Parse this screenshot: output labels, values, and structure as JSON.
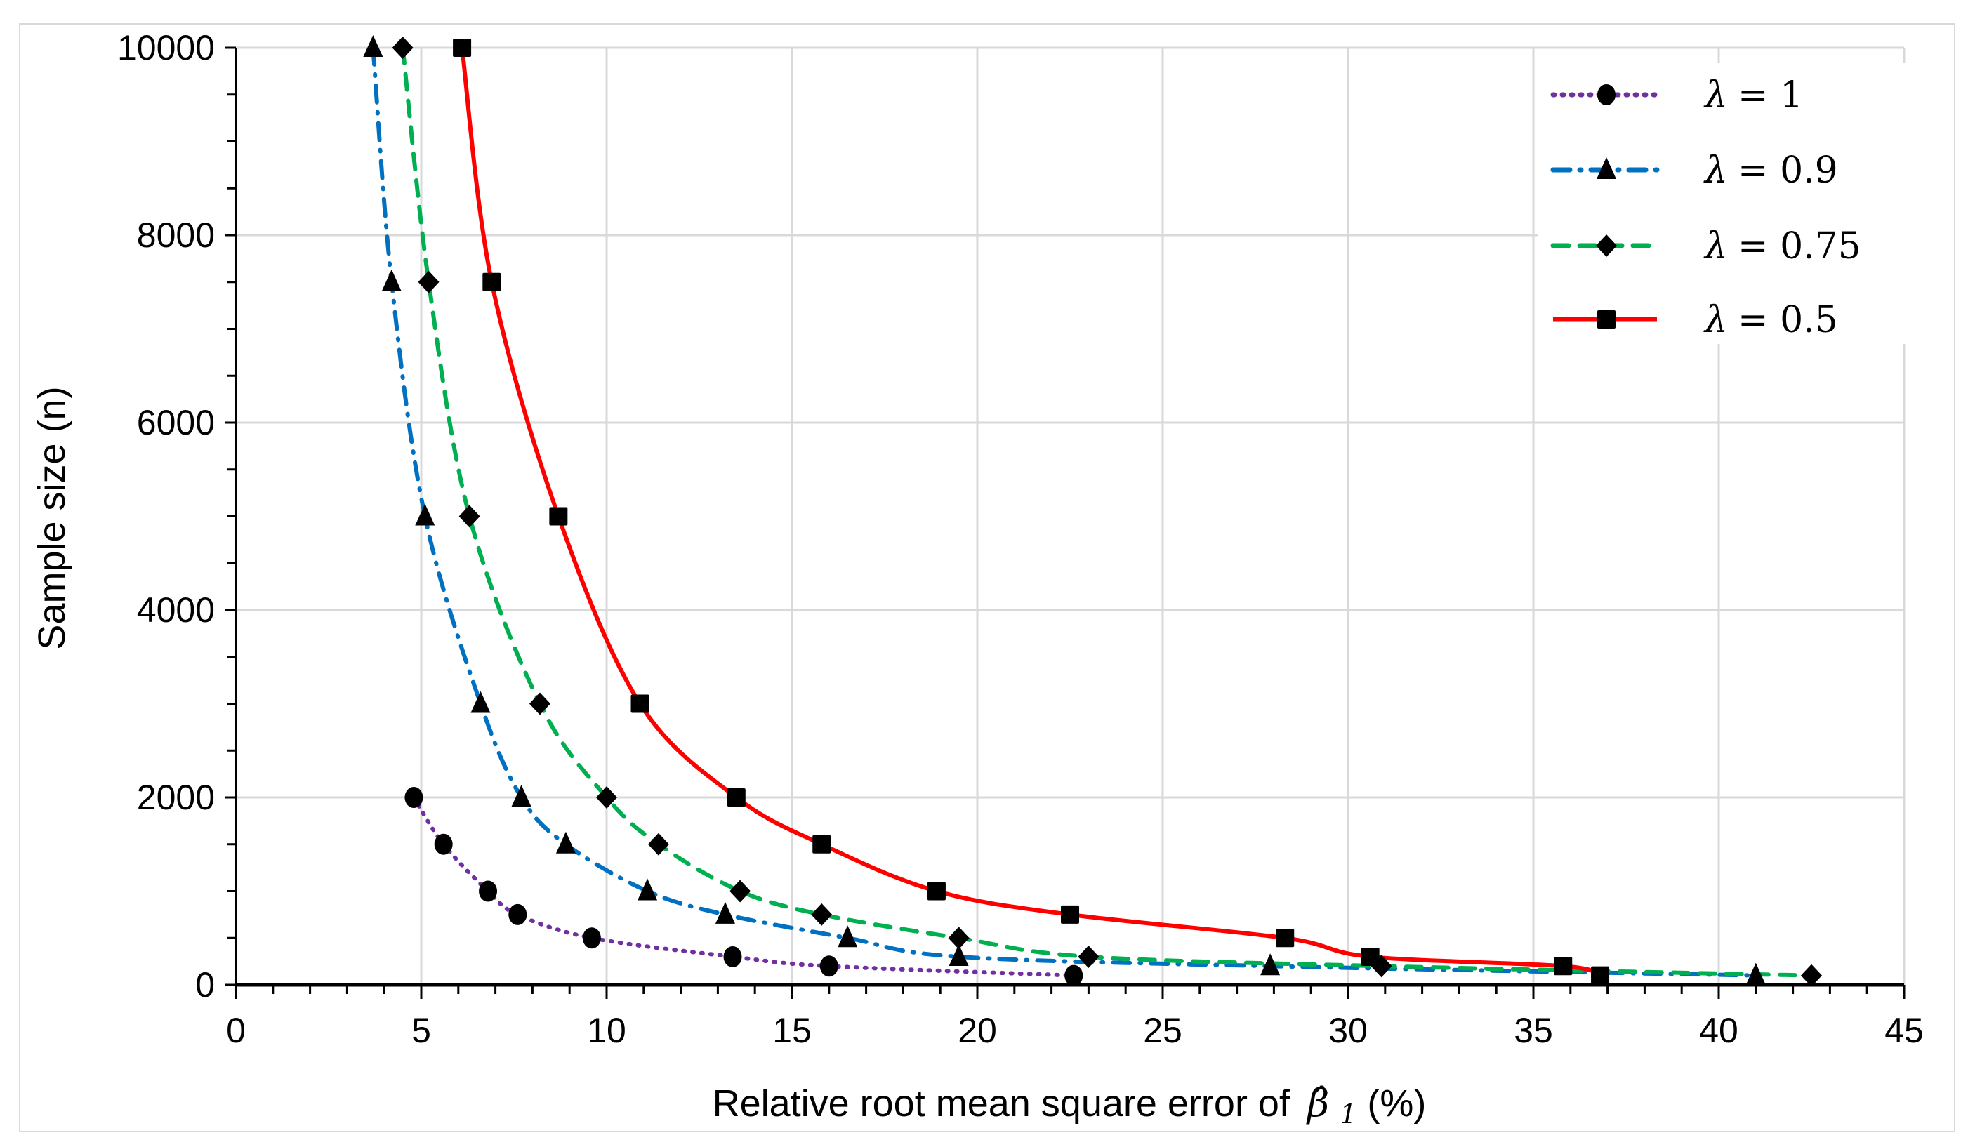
{
  "chart_data": {
    "type": "line",
    "title": "",
    "xlabel": "Relative root mean square error of β̂1 (%)",
    "xlabel_parts": {
      "prefix": "Relative root mean square error of ",
      "symbol": "β̂",
      "subscript": "1",
      "suffix": "(%)"
    },
    "ylabel": "Sample size (n)",
    "xlim": [
      0,
      45
    ],
    "ylim": [
      0,
      10000
    ],
    "x_ticks": [
      0,
      5,
      10,
      15,
      20,
      25,
      30,
      35,
      40,
      45
    ],
    "x_minor_step": 1,
    "y_ticks": [
      0,
      2000,
      4000,
      6000,
      8000,
      10000
    ],
    "y_minor_step": 500,
    "grid": {
      "vertical": true,
      "horizontal": true,
      "color": "#d9d9d9"
    },
    "legend_position": "upper right",
    "series": [
      {
        "name": "λ = 1",
        "lambda": "1",
        "color": "#7030a0",
        "line_style": "dotted",
        "marker": "circle",
        "points": [
          {
            "x": 4.8,
            "y": 2000
          },
          {
            "x": 5.6,
            "y": 1500
          },
          {
            "x": 6.8,
            "y": 1000
          },
          {
            "x": 7.6,
            "y": 750
          },
          {
            "x": 9.6,
            "y": 500
          },
          {
            "x": 13.4,
            "y": 300
          },
          {
            "x": 16.0,
            "y": 200
          },
          {
            "x": 22.6,
            "y": 100
          }
        ]
      },
      {
        "name": "λ = 0.9",
        "lambda": "0.9",
        "color": "#0070c0",
        "line_style": "dash-dot",
        "marker": "triangle",
        "points": [
          {
            "x": 3.7,
            "y": 10000
          },
          {
            "x": 4.2,
            "y": 7500
          },
          {
            "x": 5.1,
            "y": 5000
          },
          {
            "x": 6.6,
            "y": 3000
          },
          {
            "x": 7.7,
            "y": 2000
          },
          {
            "x": 8.9,
            "y": 1500
          },
          {
            "x": 11.1,
            "y": 1000
          },
          {
            "x": 13.2,
            "y": 750
          },
          {
            "x": 16.5,
            "y": 500
          },
          {
            "x": 19.5,
            "y": 300
          },
          {
            "x": 27.9,
            "y": 200
          },
          {
            "x": 41.0,
            "y": 100
          }
        ]
      },
      {
        "name": "λ = 0.75",
        "lambda": "0.75",
        "color": "#00b050",
        "line_style": "dashed",
        "marker": "diamond",
        "points": [
          {
            "x": 4.5,
            "y": 10000
          },
          {
            "x": 5.2,
            "y": 7500
          },
          {
            "x": 6.3,
            "y": 5000
          },
          {
            "x": 8.2,
            "y": 3000
          },
          {
            "x": 10.0,
            "y": 2000
          },
          {
            "x": 11.4,
            "y": 1500
          },
          {
            "x": 13.6,
            "y": 1000
          },
          {
            "x": 15.8,
            "y": 750
          },
          {
            "x": 19.5,
            "y": 500
          },
          {
            "x": 23.0,
            "y": 300
          },
          {
            "x": 30.9,
            "y": 200
          },
          {
            "x": 42.5,
            "y": 100
          }
        ]
      },
      {
        "name": "λ = 0.5",
        "lambda": "0.5",
        "color": "#ff0000",
        "line_style": "solid",
        "marker": "square",
        "points": [
          {
            "x": 6.1,
            "y": 10000
          },
          {
            "x": 6.9,
            "y": 7500
          },
          {
            "x": 8.7,
            "y": 5000
          },
          {
            "x": 10.9,
            "y": 3000
          },
          {
            "x": 13.5,
            "y": 2000
          },
          {
            "x": 15.8,
            "y": 1500
          },
          {
            "x": 18.9,
            "y": 1000
          },
          {
            "x": 22.5,
            "y": 750
          },
          {
            "x": 28.3,
            "y": 500
          },
          {
            "x": 30.6,
            "y": 300
          },
          {
            "x": 35.8,
            "y": 200
          },
          {
            "x": 36.8,
            "y": 100
          }
        ]
      }
    ]
  },
  "legend": {
    "items": [
      {
        "label_prefix": "λ",
        "label_value": "= 1"
      },
      {
        "label_prefix": "λ",
        "label_value": "= 0.9"
      },
      {
        "label_prefix": "λ",
        "label_value": "= 0.75"
      },
      {
        "label_prefix": "λ",
        "label_value": "= 0.5"
      }
    ]
  }
}
